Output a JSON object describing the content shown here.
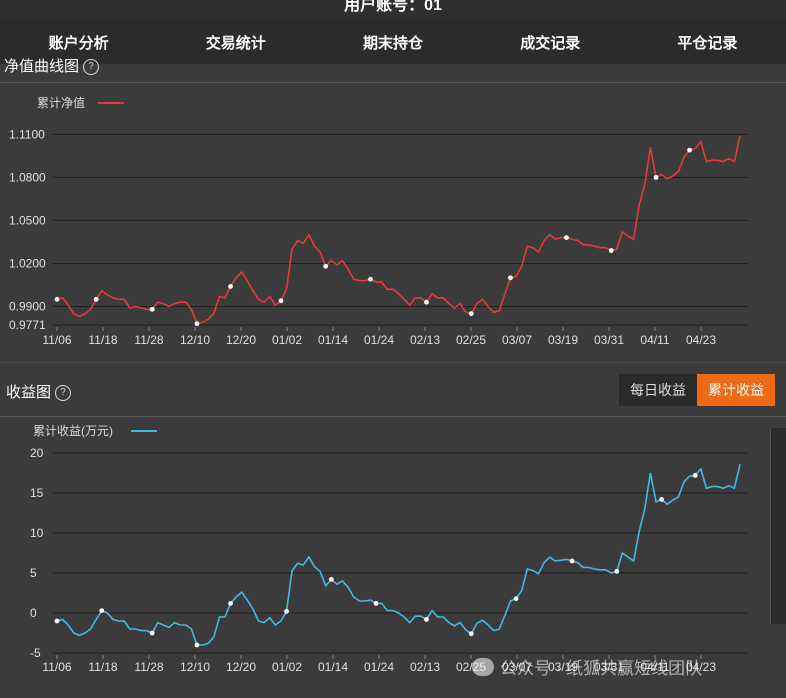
{
  "header": {
    "title": "用户账号：01"
  },
  "tabs": [
    {
      "label": "账户分析",
      "active": true
    },
    {
      "label": "交易统计",
      "active": false
    },
    {
      "label": "期末持仓",
      "active": false
    },
    {
      "label": "成交记录",
      "active": false
    },
    {
      "label": "平仓记录",
      "active": false
    }
  ],
  "nav_panel": {
    "title": "净值曲线图"
  },
  "profit_panel": {
    "title": "收益图",
    "toggle": {
      "daily": "每日收益",
      "cumulative": "累计收益",
      "selected": "累计收益"
    }
  },
  "help_icon": "question-circle-icon",
  "watermark": {
    "text": "公众号 · 纸狐共赢短线团队"
  },
  "colors": {
    "nav_line": "#e63a3a",
    "profit_line": "#44b8e6",
    "accent": "#ee6a14",
    "tab_active": "#7d5d44"
  },
  "chart_data": [
    {
      "type": "line",
      "legend": "累计净值",
      "yticks": [
        "1.1100",
        "1.0800",
        "1.0500",
        "1.0200",
        "0.9900",
        "0.9771"
      ],
      "ytick_values": [
        1.11,
        1.08,
        1.05,
        1.02,
        0.99,
        0.9771
      ],
      "ylim": [
        0.9771,
        1.12
      ],
      "xticks": [
        "11/06",
        "11/18",
        "11/28",
        "12/10",
        "12/20",
        "01/02",
        "01/14",
        "01/24",
        "02/13",
        "02/25",
        "03/07",
        "03/19",
        "03/31",
        "04/11",
        "04/23"
      ],
      "series": [
        {
          "name": "累计净值",
          "values": [
            0.995,
            0.996,
            0.991,
            0.985,
            0.983,
            0.985,
            0.988,
            0.995,
            1.001,
            0.998,
            0.996,
            0.995,
            0.995,
            0.989,
            0.99,
            0.989,
            0.988,
            0.988,
            0.993,
            0.992,
            0.99,
            0.992,
            0.993,
            0.993,
            0.988,
            0.978,
            0.979,
            0.981,
            0.985,
            0.997,
            0.996,
            1.004,
            1.01,
            1.014,
            1.008,
            1.001,
            0.995,
            0.993,
            0.997,
            0.991,
            0.994,
            1.002,
            1.03,
            1.036,
            1.034,
            1.04,
            1.032,
            1.028,
            1.018,
            1.022,
            1.019,
            1.022,
            1.016,
            1.009,
            1.008,
            1.008,
            1.009,
            1.007,
            1.007,
            1.002,
            1.002,
            0.999,
            0.995,
            0.991,
            0.996,
            0.996,
            0.993,
            0.999,
            0.996,
            0.996,
            0.992,
            0.989,
            0.992,
            0.986,
            0.985,
            0.992,
            0.995,
            0.99,
            0.986,
            0.987,
            0.999,
            1.01,
            1.011,
            1.018,
            1.032,
            1.031,
            1.028,
            1.036,
            1.04,
            1.037,
            1.038,
            1.038,
            1.037,
            1.036,
            1.033,
            1.033,
            1.032,
            1.031,
            1.031,
            1.029,
            1.03,
            1.042,
            1.039,
            1.037,
            1.061,
            1.075,
            1.101,
            1.08,
            1.082,
            1.079,
            1.081,
            1.084,
            1.094,
            1.099,
            1.1,
            1.105,
            1.091,
            1.092,
            1.092,
            1.091,
            1.093,
            1.091,
            1.109
          ],
          "markers": [
            0,
            7,
            17,
            25,
            31,
            40,
            48,
            56,
            66,
            74,
            81,
            91,
            99,
            107,
            113
          ]
        }
      ]
    },
    {
      "type": "line",
      "legend": "累计收益(万元)",
      "yticks": [
        "20",
        "15",
        "10",
        "5",
        "0",
        "-5"
      ],
      "ytick_values": [
        20,
        15,
        10,
        5,
        0,
        -5
      ],
      "ylim": [
        -5,
        20
      ],
      "xticks": [
        "11/06",
        "11/18",
        "11/28",
        "12/10",
        "12/20",
        "01/02",
        "01/14",
        "01/24",
        "02/13",
        "02/25",
        "03/07",
        "03/19",
        "03/31",
        "04/11",
        "04/23"
      ],
      "series": [
        {
          "name": "累计收益(万元)",
          "values": [
            -1.0,
            -0.8,
            -1.5,
            -2.5,
            -2.8,
            -2.5,
            -2.0,
            -0.8,
            0.3,
            0.0,
            -0.8,
            -1.0,
            -1.0,
            -2.0,
            -2.0,
            -2.2,
            -2.2,
            -2.5,
            -1.2,
            -1.5,
            -1.8,
            -1.2,
            -1.5,
            -1.5,
            -2.0,
            -4.0,
            -4.0,
            -3.8,
            -3.0,
            -0.5,
            -0.5,
            1.2,
            2.0,
            2.6,
            1.6,
            0.5,
            -1.0,
            -1.2,
            -0.6,
            -1.5,
            -1.0,
            0.2,
            5.3,
            6.2,
            6.0,
            7.0,
            5.8,
            5.2,
            3.4,
            4.2,
            3.6,
            4.0,
            3.2,
            2.0,
            1.5,
            1.5,
            1.6,
            1.2,
            1.2,
            0.3,
            0.3,
            0.0,
            -0.5,
            -1.2,
            -0.4,
            -0.4,
            -0.8,
            0.3,
            -0.5,
            -0.5,
            -1.2,
            -1.6,
            -1.2,
            -2.1,
            -2.6,
            -1.3,
            -0.9,
            -1.5,
            -2.2,
            -2.0,
            -0.3,
            1.5,
            1.8,
            2.8,
            5.5,
            5.3,
            4.9,
            6.3,
            7.0,
            6.5,
            6.6,
            6.7,
            6.5,
            6.3,
            5.7,
            5.7,
            5.5,
            5.4,
            5.4,
            5.0,
            5.2,
            7.5,
            7.0,
            6.5,
            10.2,
            13.0,
            17.5,
            13.9,
            14.2,
            13.6,
            14.1,
            14.5,
            16.4,
            17.1,
            17.2,
            18.0,
            15.6,
            15.8,
            15.8,
            15.6,
            15.9,
            15.6,
            18.6
          ],
          "markers": [
            0,
            8,
            17,
            25,
            31,
            41,
            49,
            57,
            66,
            74,
            82,
            92,
            100,
            108,
            114
          ]
        }
      ]
    }
  ]
}
